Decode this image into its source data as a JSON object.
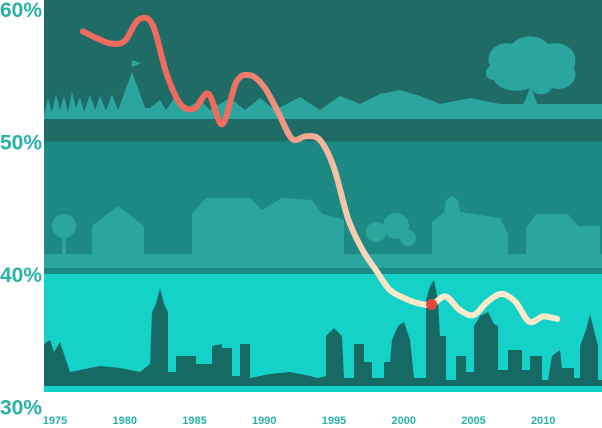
{
  "chart_data": {
    "type": "line",
    "title": "",
    "xlabel": "",
    "ylabel": "",
    "xlim": [
      1975,
      2014
    ],
    "ylim": [
      30,
      60
    ],
    "x_ticks": [
      1975,
      1980,
      1985,
      1990,
      1995,
      2000,
      2005,
      2010
    ],
    "x_tick_labels": [
      "1975",
      "1980",
      "1985",
      "1990",
      "1995",
      "2000",
      "2005",
      "2010"
    ],
    "y_ticks": [
      30,
      40,
      50,
      60
    ],
    "y_tick_labels": [
      "30%",
      "40%",
      "50%",
      "60%"
    ],
    "grid": false,
    "series": [
      {
        "x": [
          1977,
          1978,
          1979,
          1980,
          1981,
          1982,
          1983,
          1984,
          1985,
          1986,
          1987,
          1988,
          1989,
          1990,
          1991,
          1992,
          1993,
          1994,
          1995,
          1996,
          1997,
          1998,
          1999,
          2000,
          2001,
          2002,
          2003,
          2004,
          2005,
          2006,
          2007,
          2008,
          2009,
          2010,
          2011
        ],
        "values": [
          58.3,
          57.8,
          57.4,
          57.6,
          59.2,
          58.8,
          55.1,
          52.8,
          52.5,
          53.6,
          51.3,
          54.5,
          55.0,
          54.1,
          52.2,
          50.2,
          50.4,
          50.1,
          48.0,
          44.2,
          41.9,
          40.3,
          38.8,
          38.2,
          37.8,
          37.7,
          38.3,
          37.3,
          36.9,
          37.9,
          38.5,
          37.9,
          36.4,
          36.8,
          36.6
        ],
        "color_start": "#ee6b5e",
        "color_end": "#fbe9c9"
      }
    ],
    "highlight": {
      "x": 2002,
      "y": 37.7,
      "color": "#e0473c"
    },
    "colors": {
      "band_top": "#1f6b66",
      "band_middle": "#1c8a83",
      "band_bottom": "#14d2c8",
      "silhouette_light": "#2aa69f",
      "silhouette_dark": "#176a63",
      "axis_label": "#2ab2a9"
    }
  }
}
